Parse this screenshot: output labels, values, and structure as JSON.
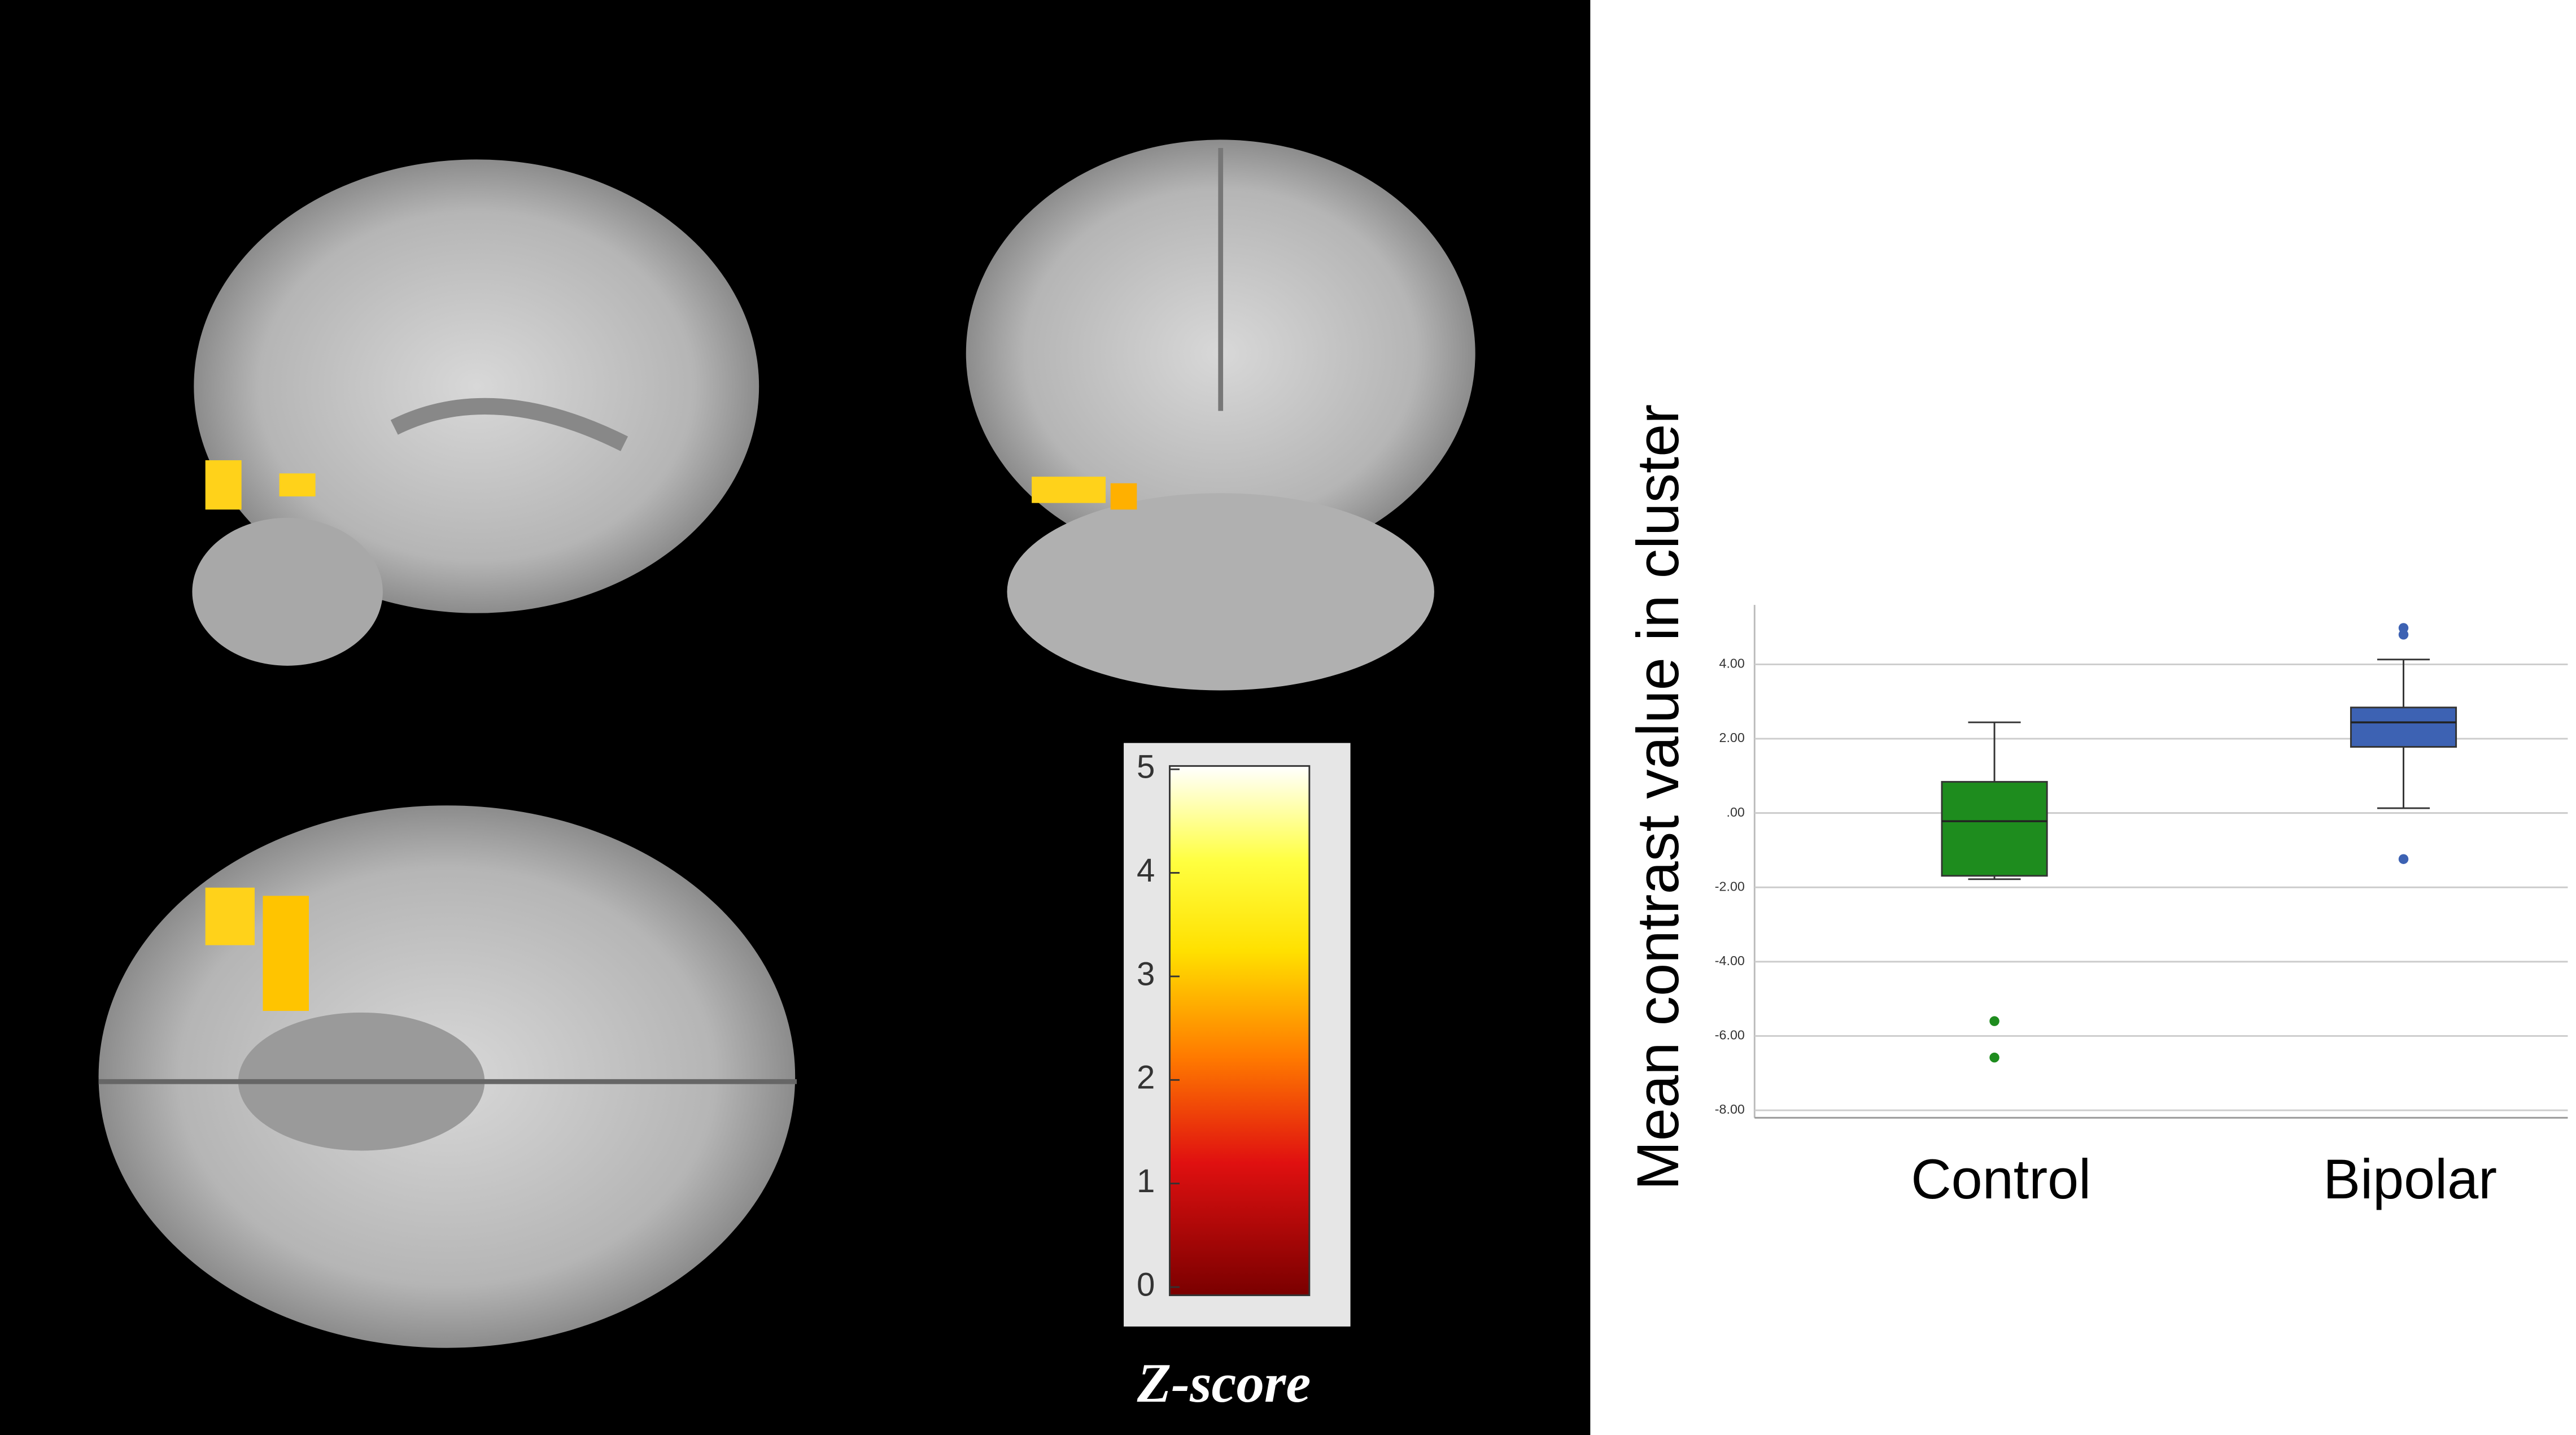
{
  "chart_data": [
    {
      "type": "colorbar",
      "title": "Z-score",
      "ylim": [
        0,
        5
      ],
      "yticks": [
        0,
        1,
        2,
        3,
        4,
        5
      ]
    },
    {
      "type": "box",
      "ylabel": "Mean contrast value in cluster",
      "categories": [
        "Control",
        "Bipolar"
      ],
      "colors": [
        "#1e8c1e",
        "#3d62b3"
      ],
      "boxes": [
        {
          "whisker_low": -1.78,
          "q1": -1.69,
          "median": -0.22,
          "q3": 0.84,
          "whisker_high": 2.44,
          "outliers": [
            -5.6,
            -6.58
          ]
        },
        {
          "whisker_low": 0.13,
          "q1": 1.78,
          "median": 2.44,
          "q3": 2.84,
          "whisker_high": 4.13,
          "outliers": [
            4.98,
            4.8,
            -1.24
          ]
        }
      ],
      "ylim": [
        -8.2,
        5.6
      ],
      "yticks": [
        {
          "value": 4,
          "label": "4.00"
        },
        {
          "value": 2,
          "label": "2.00"
        },
        {
          "value": 0,
          "label": ".00"
        },
        {
          "value": -2,
          "label": "-2.00"
        },
        {
          "value": -4,
          "label": "-4.00"
        },
        {
          "value": -6,
          "label": "-6.00"
        },
        {
          "value": -8,
          "label": "-8.00"
        }
      ],
      "grid": true
    }
  ]
}
